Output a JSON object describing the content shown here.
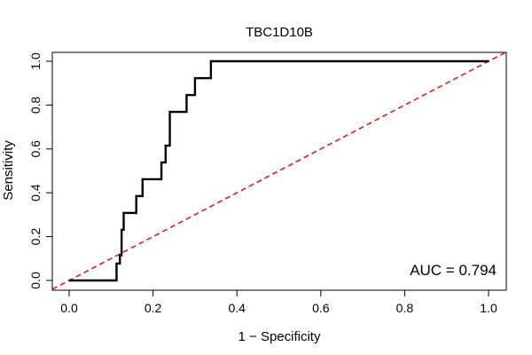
{
  "chart_data": {
    "type": "line",
    "title": "TBC1D10B",
    "xlabel": "1 − Specificity",
    "ylabel": "Sensitivity",
    "xlim": [
      0,
      1
    ],
    "ylim": [
      0,
      1
    ],
    "xticks": [
      "0.0",
      "0.2",
      "0.4",
      "0.6",
      "0.8",
      "1.0"
    ],
    "yticks": [
      "0.0",
      "0.2",
      "0.4",
      "0.6",
      "0.8",
      "1.0"
    ],
    "grid": false,
    "series": [
      {
        "name": "ROC",
        "color": "#000000",
        "x": [
          0.0,
          0.113,
          0.113,
          0.121,
          0.121,
          0.125,
          0.125,
          0.13,
          0.13,
          0.16,
          0.16,
          0.175,
          0.175,
          0.22,
          0.22,
          0.23,
          0.23,
          0.24,
          0.24,
          0.28,
          0.28,
          0.3,
          0.3,
          0.338,
          0.338,
          1.0
        ],
        "y": [
          0.0,
          0.0,
          0.077,
          0.077,
          0.115,
          0.115,
          0.231,
          0.231,
          0.308,
          0.308,
          0.385,
          0.385,
          0.462,
          0.462,
          0.538,
          0.538,
          0.615,
          0.615,
          0.769,
          0.769,
          0.846,
          0.846,
          0.923,
          0.923,
          1.0,
          1.0
        ]
      },
      {
        "name": "reference",
        "color": "#e41a1c",
        "x": [
          0,
          1
        ],
        "y": [
          0,
          1
        ]
      }
    ],
    "annotations": [
      {
        "text": "AUC = 0.794"
      }
    ]
  }
}
